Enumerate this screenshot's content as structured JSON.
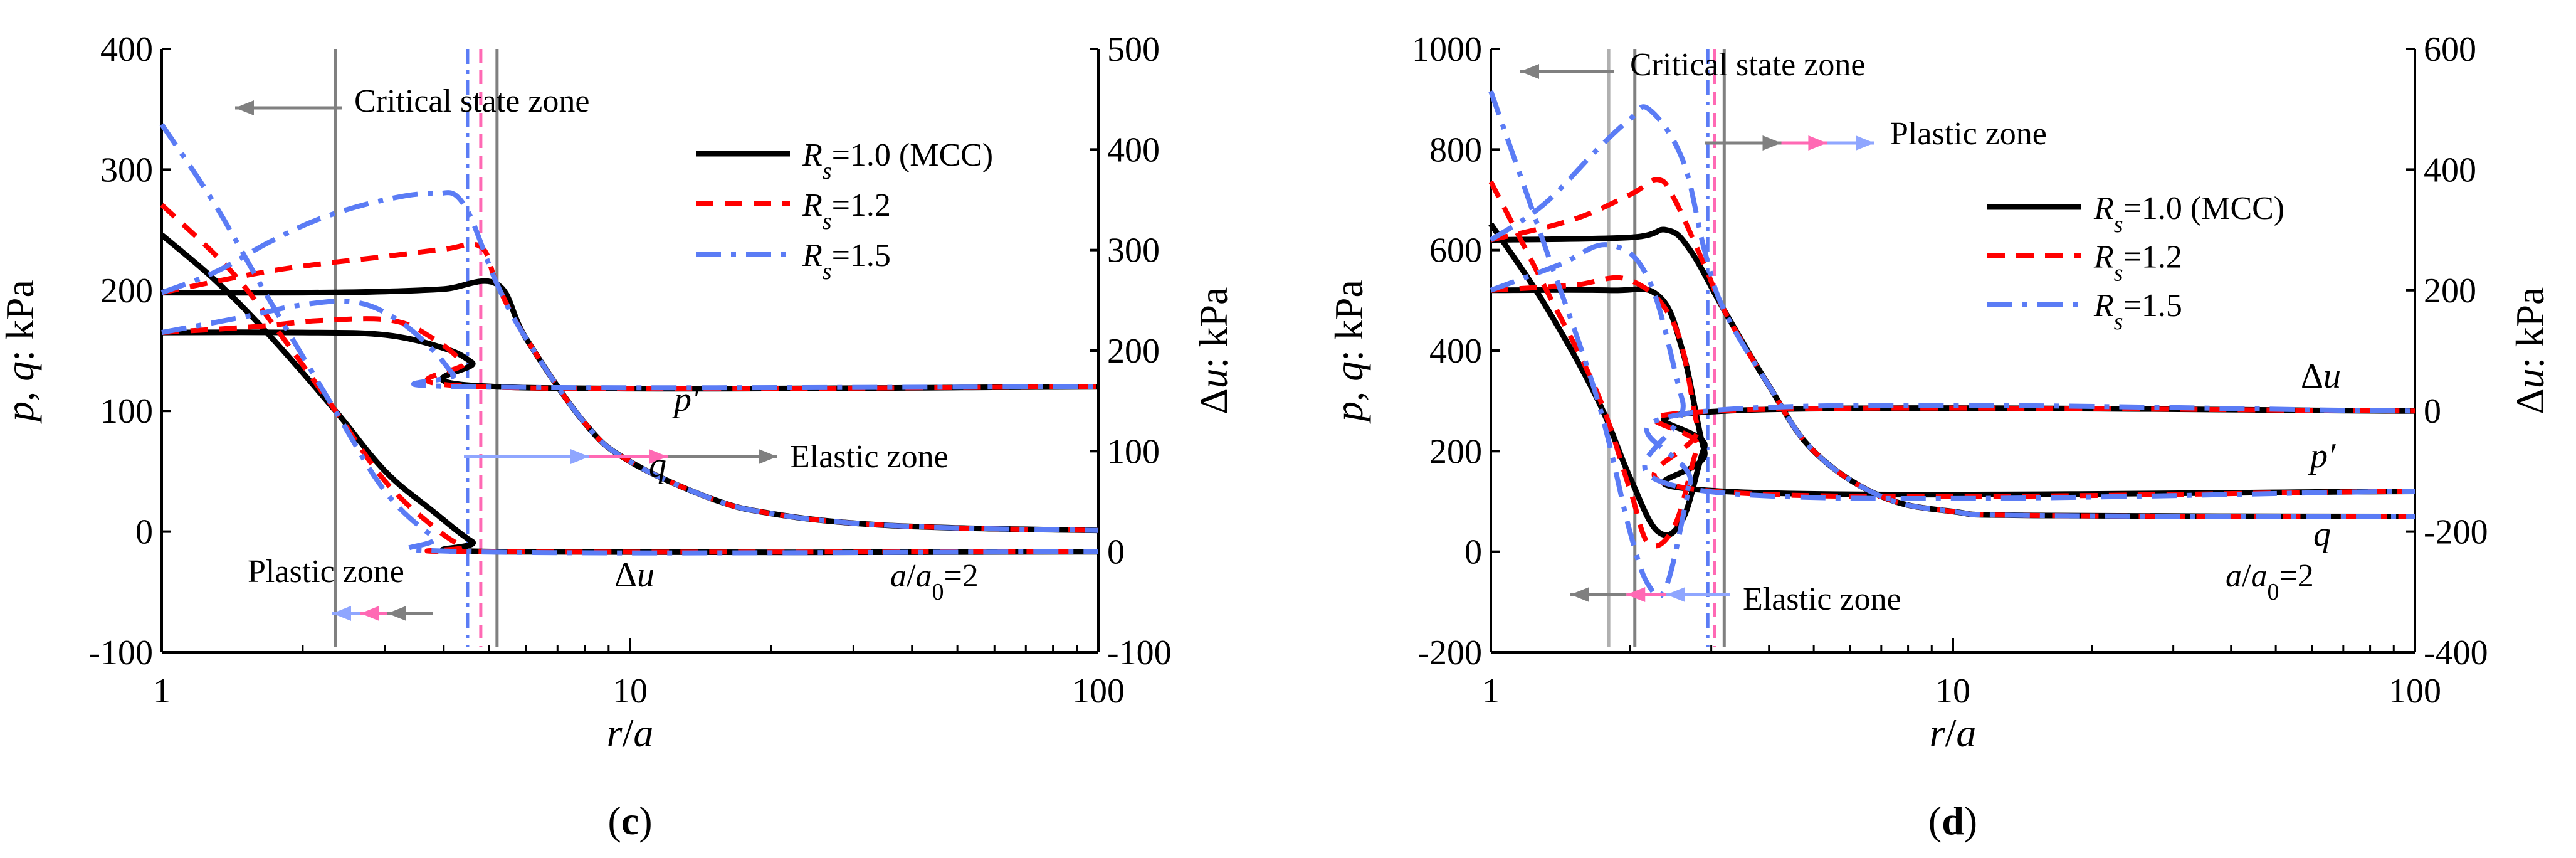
{
  "chart_data": [
    {
      "panel_label": "(c)",
      "type": "line",
      "xlabel": "r/a",
      "ylabel_left": "p, q: kPa",
      "ylabel_right": "Δu: kPa",
      "xscale": "log",
      "xlim": [
        1,
        100
      ],
      "xticks": [
        1,
        10,
        100
      ],
      "xtick_labels": [
        "1",
        "10",
        "100"
      ],
      "ylim_left": [
        -100,
        400
      ],
      "yticks_left": [
        -100,
        0,
        100,
        200,
        300,
        400
      ],
      "ytick_labels_left": [
        "-100",
        "0",
        "100",
        "200",
        "300",
        "400"
      ],
      "ylim_right": [
        -100,
        500
      ],
      "yticks_right": [
        -100,
        0,
        100,
        200,
        300,
        400,
        500
      ],
      "ytick_labels_right": [
        "-100",
        "0",
        "100",
        "200",
        "300",
        "400",
        "500"
      ],
      "legend": [
        {
          "label": "Rs=1.0 (MCC)",
          "color": "#000000",
          "style": "solid"
        },
        {
          "label": "Rs=1.2",
          "color": "#ff0000",
          "style": "dashed"
        },
        {
          "label": "Rs=1.5",
          "color": "#5b7cf5",
          "style": "dashdot"
        }
      ],
      "curve_labels": [
        "p′",
        "q",
        "Δu"
      ],
      "annotation_ratio": "a/a0=2",
      "zone_labels": {
        "critical": "Critical state zone",
        "elastic": "Elastic zone",
        "plastic": "Plastic zone"
      },
      "boundaries": [
        {
          "name": "critical-state boundary",
          "x": 2.35,
          "color": "#808080"
        },
        {
          "name": "plastic boundary Rs=1.5",
          "x": 4.5,
          "color": "#5b7cf5"
        },
        {
          "name": "plastic boundary Rs=1.2",
          "x": 4.8,
          "color": "#ff69b4"
        },
        {
          "name": "plastic boundary Rs=1.0",
          "x": 5.2,
          "color": "#808080"
        }
      ],
      "series": [
        {
          "name": "p′ Rs=1.0",
          "group": "Rs=1.0",
          "axis": "left",
          "x": [
            1,
            2,
            3,
            4,
            4.6,
            5.2,
            100
          ],
          "y": [
            165,
            165,
            163,
            152,
            140,
            120,
            120
          ]
        },
        {
          "name": "q Rs=1.0",
          "group": "Rs=1.0",
          "axis": "left",
          "x": [
            1,
            2,
            3,
            4,
            5.2,
            6,
            8,
            10,
            15,
            20,
            30,
            50,
            100
          ],
          "y": [
            198,
            198,
            199,
            201,
            205,
            160,
            90,
            58,
            27,
            15,
            7,
            3,
            1
          ]
        },
        {
          "name": "Δu Rs=1.0",
          "group": "Rs=1.0",
          "axis": "right",
          "x": [
            1,
            1.3,
            1.7,
            2.35,
            3,
            3.8,
            4.6,
            5.2,
            100
          ],
          "y": [
            315,
            270,
            215,
            140,
            80,
            40,
            10,
            0,
            0
          ]
        },
        {
          "name": "p′ Rs=1.2",
          "group": "Rs=1.2",
          "axis": "left",
          "x": [
            1,
            1.6,
            2.2,
            3.1,
            3.8,
            4.4,
            4.8,
            100
          ],
          "y": [
            165,
            170,
            175,
            175,
            160,
            140,
            120,
            120
          ]
        },
        {
          "name": "q Rs=1.2",
          "group": "Rs=1.2",
          "axis": "left",
          "x": [
            1,
            1.5,
            2,
            3,
            4,
            4.8,
            5.2,
            6,
            8,
            10,
            15,
            20,
            30,
            50,
            100
          ],
          "y": [
            198,
            212,
            220,
            228,
            234,
            236,
            205,
            160,
            90,
            58,
            27,
            15,
            7,
            3,
            1
          ]
        },
        {
          "name": "Δu Rs=1.2",
          "group": "Rs=1.2",
          "axis": "right",
          "x": [
            1,
            1.4,
            1.8,
            2.35,
            3,
            3.8,
            4.4,
            4.8,
            100
          ],
          "y": [
            345,
            280,
            215,
            140,
            70,
            25,
            5,
            0,
            0
          ]
        },
        {
          "name": "p′ Rs=1.5",
          "group": "Rs=1.5",
          "axis": "left",
          "x": [
            1,
            1.5,
            2,
            2.6,
            3.2,
            3.8,
            4.2,
            4.5,
            100
          ],
          "y": [
            165,
            178,
            188,
            190,
            175,
            150,
            130,
            120,
            120
          ]
        },
        {
          "name": "q Rs=1.5",
          "group": "Rs=1.5",
          "axis": "left",
          "x": [
            1,
            1.3,
            1.7,
            2.2,
            3,
            3.8,
            4.4,
            5.2,
            6,
            8,
            10,
            15,
            20,
            30,
            50,
            100
          ],
          "y": [
            198,
            215,
            240,
            260,
            275,
            280,
            272,
            205,
            160,
            90,
            58,
            27,
            15,
            7,
            3,
            1
          ]
        },
        {
          "name": "Δu Rs=1.5",
          "group": "Rs=1.5",
          "axis": "right",
          "x": [
            1,
            1.3,
            1.7,
            2.35,
            3,
            3.8,
            4.5,
            100
          ],
          "y": [
            425,
            345,
            250,
            140,
            60,
            15,
            0,
            0
          ]
        }
      ]
    },
    {
      "panel_label": "(d)",
      "type": "line",
      "xlabel": "r/a",
      "ylabel_left": "p, q: kPa",
      "ylabel_right": "Δu: kPa",
      "xscale": "log",
      "xlim": [
        1,
        100
      ],
      "xticks": [
        1,
        10,
        100
      ],
      "xtick_labels": [
        "1",
        "10",
        "100"
      ],
      "ylim_left": [
        -200,
        1000
      ],
      "yticks_left": [
        -200,
        0,
        200,
        400,
        600,
        800,
        1000
      ],
      "ytick_labels_left": [
        "-200",
        "0",
        "200",
        "400",
        "600",
        "800",
        "1000"
      ],
      "ylim_right": [
        -400,
        600
      ],
      "yticks_right": [
        -400,
        -200,
        0,
        200,
        400,
        600
      ],
      "ytick_labels_right": [
        "-400",
        "-200",
        "0",
        "200",
        "400",
        "600"
      ],
      "legend": [
        {
          "label": "Rs=1.0 (MCC)",
          "color": "#000000",
          "style": "solid"
        },
        {
          "label": "Rs=1.2",
          "color": "#ff0000",
          "style": "dashed"
        },
        {
          "label": "Rs=1.5",
          "color": "#5b7cf5",
          "style": "dashdot"
        }
      ],
      "curve_labels": [
        "Δu",
        "p′",
        "q"
      ],
      "annotation_ratio": "a/a0=2",
      "zone_labels": {
        "critical": "Critical state zone",
        "elastic": "Elastic zone",
        "plastic": "Plastic zone"
      },
      "boundaries": [
        {
          "name": "critical-state boundary Rs=1.5",
          "x": 1.8,
          "color": "#b0b0b0"
        },
        {
          "name": "critical-state boundary Rs=1.0",
          "x": 2.05,
          "color": "#808080"
        },
        {
          "name": "plastic boundary Rs=1.5",
          "x": 2.95,
          "color": "#5b7cf5"
        },
        {
          "name": "plastic boundary Rs=1.2",
          "x": 3.05,
          "color": "#ff69b4"
        },
        {
          "name": "plastic boundary Rs=1.0",
          "x": 3.2,
          "color": "#808080"
        }
      ],
      "series": [
        {
          "name": "Δu Rs=1.0",
          "group": "Rs=1.0",
          "axis": "right",
          "x": [
            1,
            1.3,
            1.7,
            2,
            2.3,
            2.6,
            2.9,
            3.2,
            100
          ],
          "y": [
            310,
            180,
            20,
            -110,
            -200,
            -180,
            -60,
            0,
            0
          ]
        },
        {
          "name": "p′ Rs=1.0",
          "group": "Rs=1.0",
          "axis": "left",
          "x": [
            1,
            1.8,
            2.3,
            2.6,
            2.9,
            3.2,
            100
          ],
          "y": [
            520,
            520,
            510,
            400,
            200,
            120,
            120
          ]
        },
        {
          "name": "q Rs=1.0",
          "group": "Rs=1.0",
          "axis": "left",
          "x": [
            1,
            2,
            2.4,
            2.7,
            3.2,
            4,
            5,
            7,
            10,
            15,
            100
          ],
          "y": [
            620,
            625,
            640,
            600,
            480,
            330,
            200,
            110,
            80,
            72,
            70
          ]
        },
        {
          "name": "Δu Rs=1.2",
          "group": "Rs=1.2",
          "axis": "right",
          "x": [
            1,
            1.3,
            1.7,
            2,
            2.2,
            2.5,
            2.8,
            3.05,
            100
          ],
          "y": [
            380,
            210,
            30,
            -130,
            -220,
            -190,
            -60,
            0,
            0
          ]
        },
        {
          "name": "p′ Rs=1.2",
          "group": "Rs=1.2",
          "axis": "left",
          "x": [
            1,
            1.5,
            2,
            2.5,
            2.8,
            3.05,
            100
          ],
          "y": [
            520,
            530,
            540,
            450,
            250,
            120,
            120
          ]
        },
        {
          "name": "q Rs=1.2",
          "group": "Rs=1.2",
          "axis": "left",
          "x": [
            1,
            1.5,
            2,
            2.3,
            2.5,
            2.9,
            3.2,
            4,
            5,
            7,
            10,
            15,
            100
          ],
          "y": [
            620,
            660,
            710,
            740,
            700,
            570,
            480,
            330,
            200,
            110,
            80,
            72,
            70
          ]
        },
        {
          "name": "Δu Rs=1.5",
          "group": "Rs=1.5",
          "axis": "right",
          "x": [
            1,
            1.3,
            1.7,
            2,
            2.2,
            2.4,
            2.7,
            2.95,
            100
          ],
          "y": [
            530,
            280,
            20,
            -200,
            -290,
            -290,
            -120,
            0,
            0
          ]
        },
        {
          "name": "p′ Rs=1.5",
          "group": "Rs=1.5",
          "axis": "left",
          "x": [
            1,
            1.4,
            1.8,
            2.2,
            2.6,
            2.95,
            100
          ],
          "y": [
            520,
            570,
            610,
            540,
            300,
            120,
            120
          ]
        },
        {
          "name": "q Rs=1.5",
          "group": "Rs=1.5",
          "axis": "left",
          "x": [
            1,
            1.3,
            1.7,
            2,
            2.2,
            2.6,
            2.9,
            3.2,
            4,
            5,
            7,
            10,
            15,
            100
          ],
          "y": [
            620,
            690,
            800,
            860,
            880,
            780,
            600,
            480,
            330,
            200,
            110,
            80,
            72,
            70
          ]
        }
      ]
    }
  ]
}
